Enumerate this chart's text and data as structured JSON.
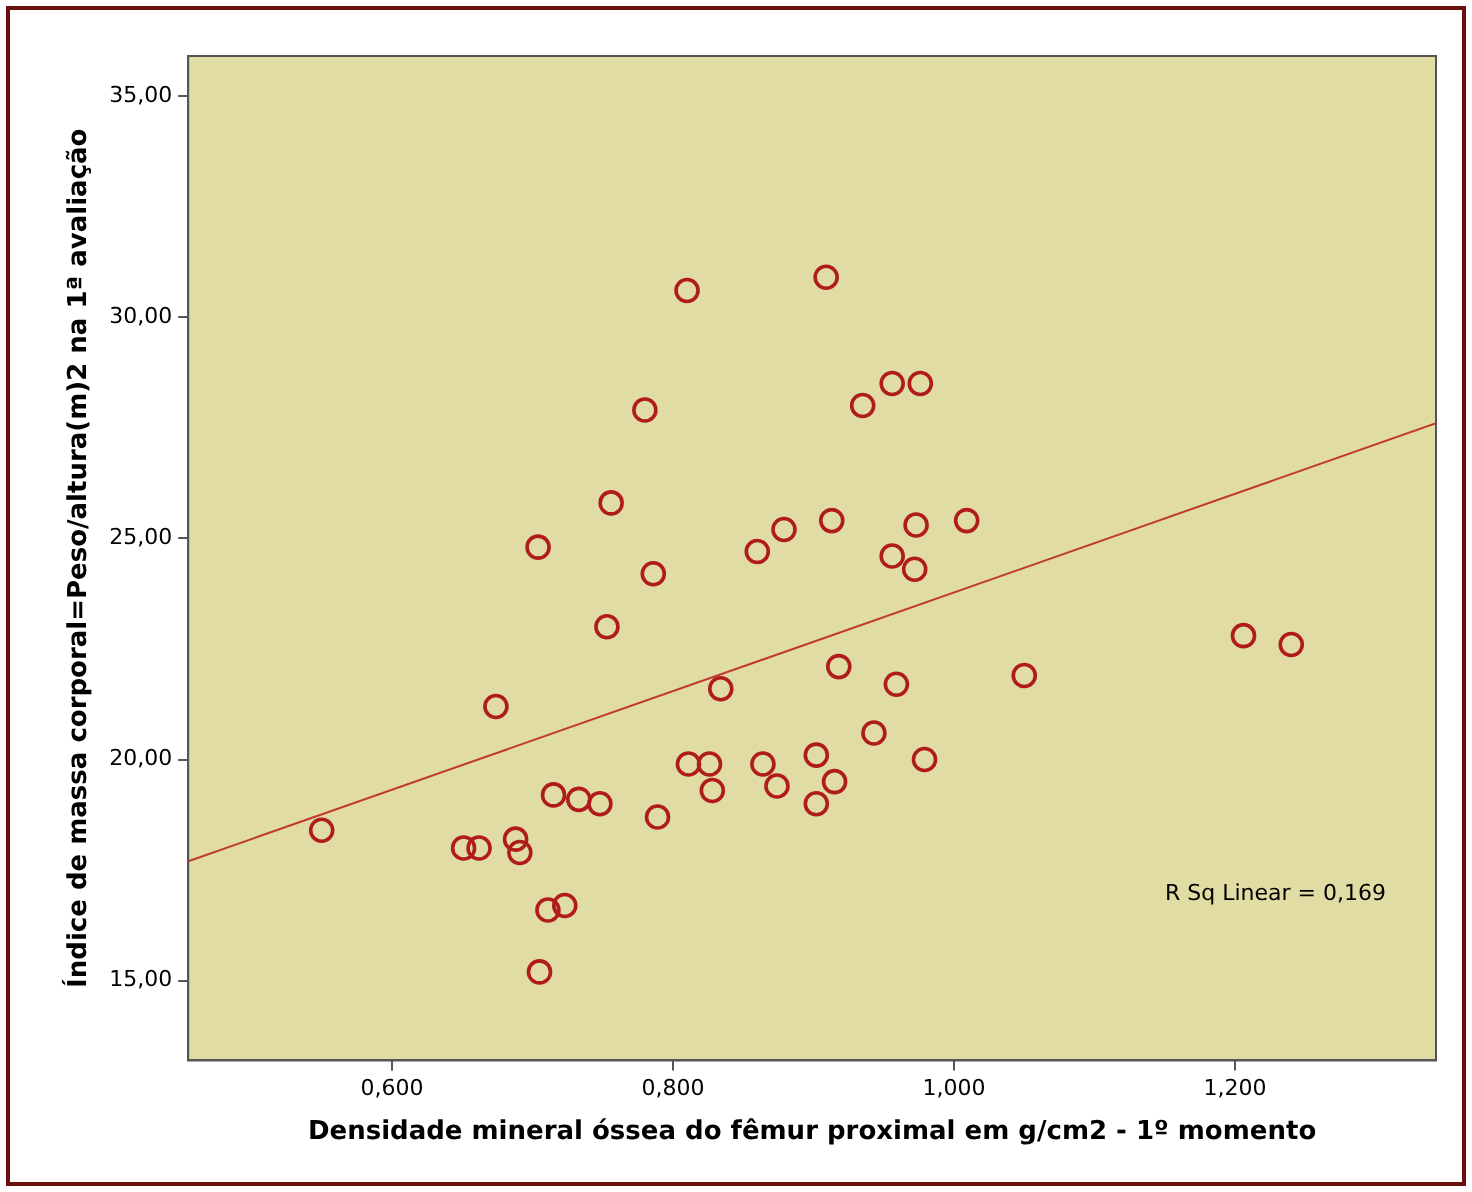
{
  "chart_data": {
    "type": "scatter",
    "xlabel": "Densidade mineral óssea do fêmur proximal em g/cm2 - 1º momento",
    "ylabel": "Índice de massa corporal=Peso/altura(m)2 na 1ª avaliação",
    "xlim": [
      0.455,
      1.343
    ],
    "ylim": [
      13.2,
      35.9
    ],
    "xticks": [
      {
        "value": 0.6,
        "label": "0,600"
      },
      {
        "value": 0.8,
        "label": "0,800"
      },
      {
        "value": 1.0,
        "label": "1,000"
      },
      {
        "value": 1.2,
        "label": "1,200"
      }
    ],
    "yticks": [
      {
        "value": 15,
        "label": "15,00"
      },
      {
        "value": 20,
        "label": "20,00"
      },
      {
        "value": 25,
        "label": "25,00"
      },
      {
        "value": 30,
        "label": "30,00"
      },
      {
        "value": 35,
        "label": "35,00"
      }
    ],
    "grid": false,
    "legend": false,
    "series": [
      {
        "color": "#b01c1c",
        "marker": "circle",
        "x": [
          0.55,
          0.651,
          0.662,
          0.674,
          0.688,
          0.691,
          0.704,
          0.705,
          0.711,
          0.723,
          0.715,
          0.733,
          0.748,
          0.753,
          0.756,
          0.78,
          0.786,
          0.789,
          0.81,
          0.811,
          0.826,
          0.828,
          0.834,
          0.86,
          0.864,
          0.874,
          0.879,
          0.902,
          0.902,
          0.909,
          0.913,
          0.915,
          0.918,
          0.935,
          0.943,
          0.956,
          0.956,
          0.959,
          0.976,
          0.973,
          0.972,
          0.979,
          1.009,
          1.05,
          1.206,
          1.24
        ],
        "values": [
          18.4,
          18.0,
          18.0,
          21.2,
          18.2,
          17.9,
          24.8,
          15.2,
          16.6,
          16.7,
          19.2,
          19.1,
          19.0,
          23.0,
          25.8,
          27.9,
          24.2,
          18.7,
          30.6,
          19.9,
          19.9,
          19.3,
          21.6,
          24.7,
          19.9,
          19.4,
          25.2,
          20.1,
          19.0,
          30.9,
          25.4,
          19.5,
          22.1,
          28.0,
          20.6,
          28.5,
          24.6,
          21.7,
          28.5,
          25.3,
          24.3,
          20.0,
          25.4,
          21.9,
          22.8,
          22.6
        ]
      },
      {
        "type": "line",
        "marker": "none",
        "color": "#c0392b",
        "x": [
          0.455,
          1.343
        ],
        "values": [
          17.7,
          27.6
        ]
      }
    ],
    "annotations": [
      "R Sq Linear = 0,169"
    ]
  }
}
